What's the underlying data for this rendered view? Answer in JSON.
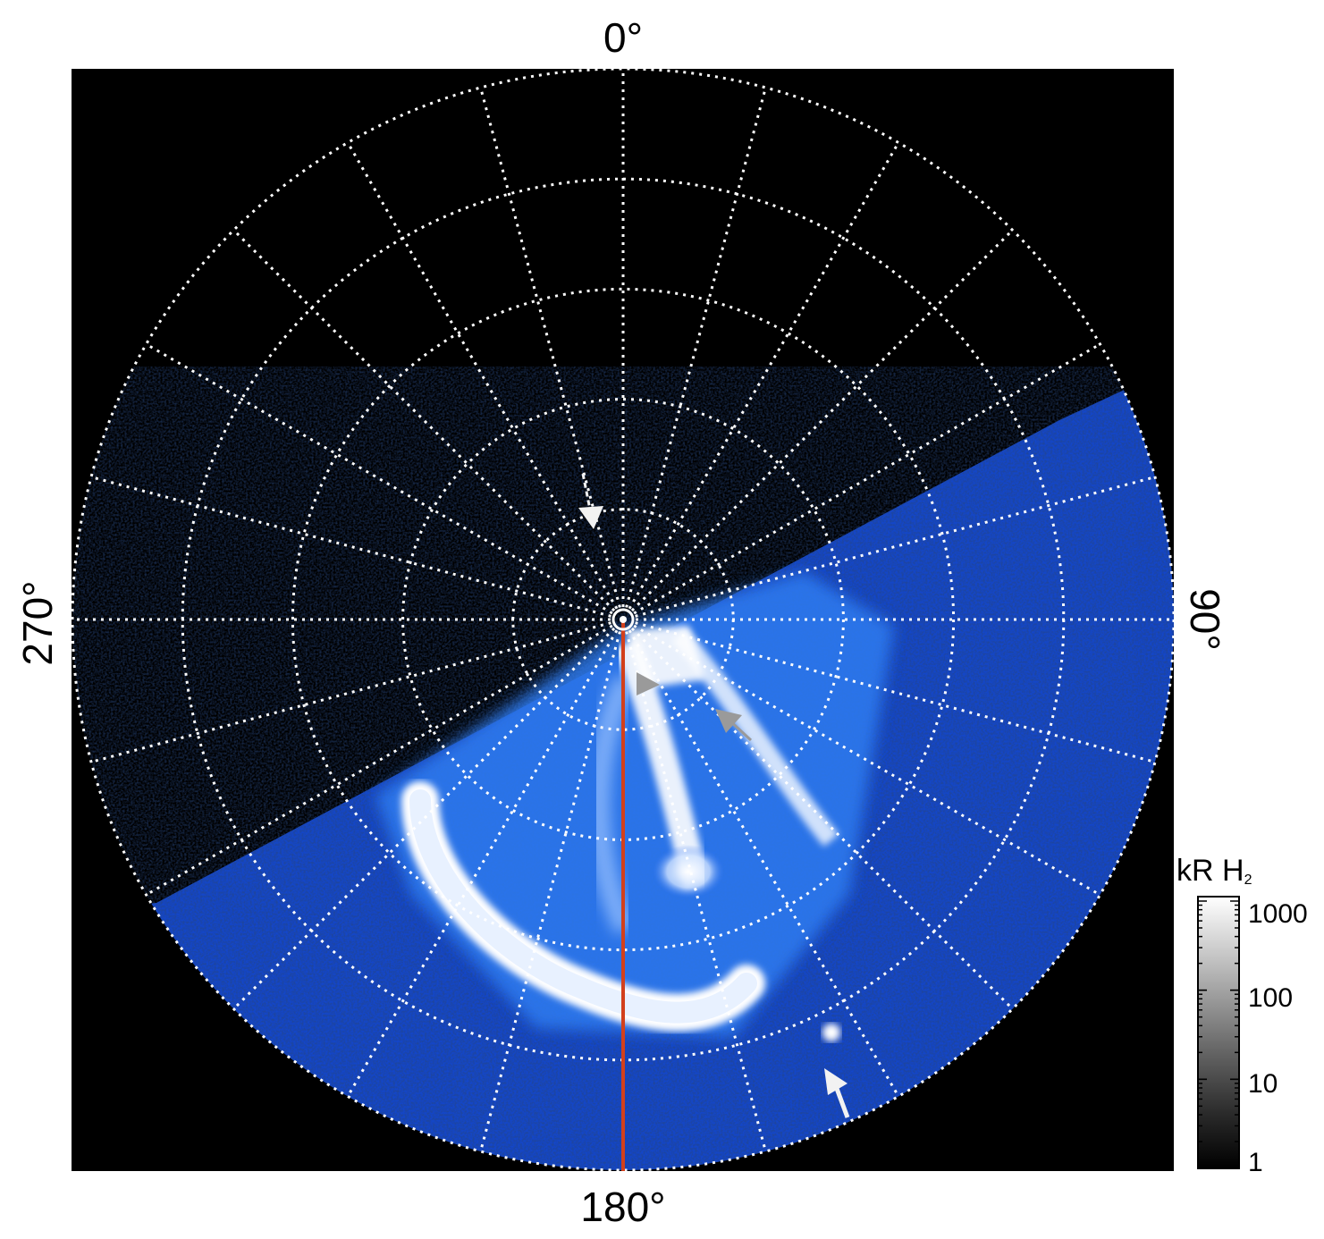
{
  "figure": {
    "labels": {
      "top": "0°",
      "right": "90°",
      "bottom": "180°",
      "left": "270°"
    },
    "colorbar": {
      "title_main": "kR H",
      "title_sub": "2",
      "ticks": [
        "1000",
        "100",
        "10",
        "1"
      ],
      "scale": "log"
    },
    "colors": {
      "background": "#000000",
      "grid": "#ffffff",
      "aurora_bright": "#ffffff",
      "aurora_mid": "#2f6df0",
      "aurora_dim": "#0a2a8a",
      "meridian_line": "#d2401c",
      "arrow_white": "#f2f2f2",
      "arrow_gray": "#9a9a9a"
    },
    "grid": {
      "rings": 5,
      "meridians": 24
    }
  }
}
